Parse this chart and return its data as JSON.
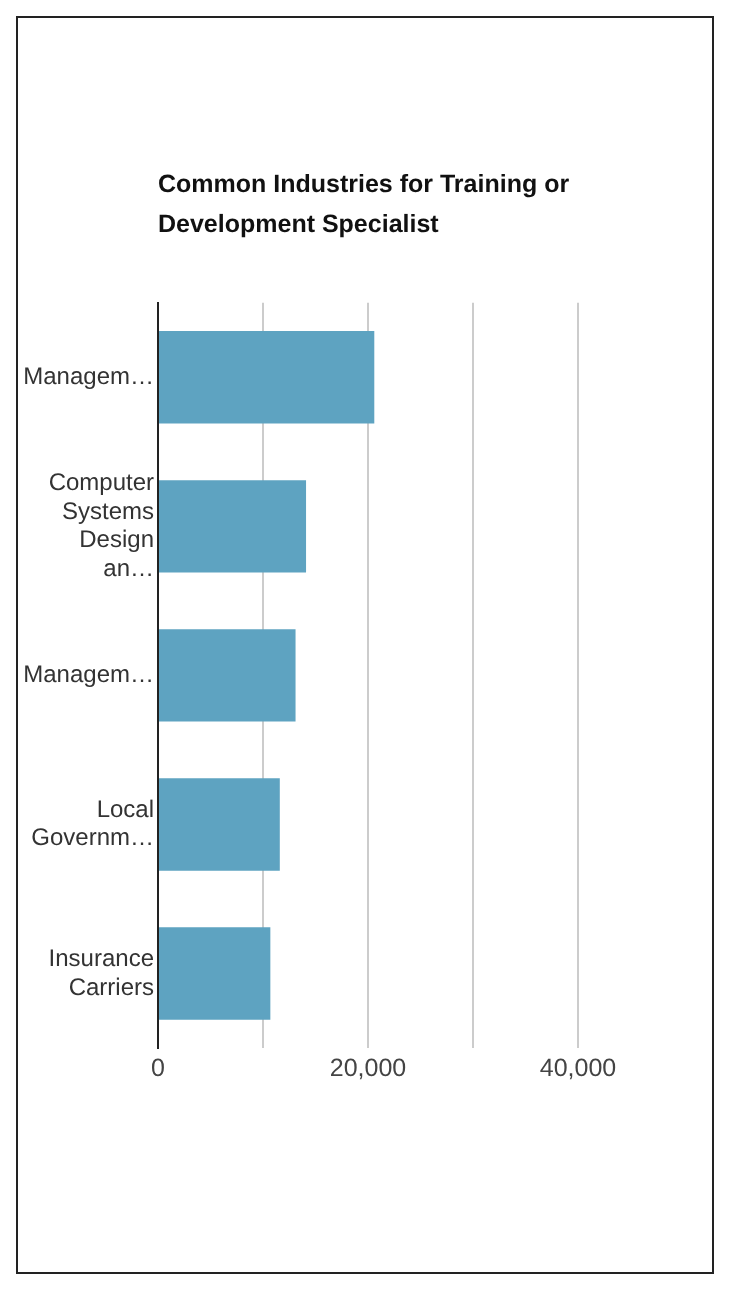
{
  "chart_data": {
    "type": "bar",
    "orientation": "horizontal",
    "title": "Common Industries for Training or Development Specialist",
    "categories": [
      "Managem…",
      "Computer Systems Design an…",
      "Managem…",
      "Local Governm…",
      "Insurance Carriers"
    ],
    "values": [
      20600,
      14100,
      13100,
      11600,
      10700
    ],
    "color": "#5ea3c1",
    "xlim": [
      0,
      40000
    ],
    "xticks": [
      0,
      {
        "value": 10000,
        "label": null
      },
      {
        "value": 20000,
        "label": "20,000"
      },
      {
        "value": 30000,
        "label": null
      },
      {
        "value": 40000,
        "label": "40,000"
      }
    ],
    "grid": "x",
    "legend": false
  }
}
